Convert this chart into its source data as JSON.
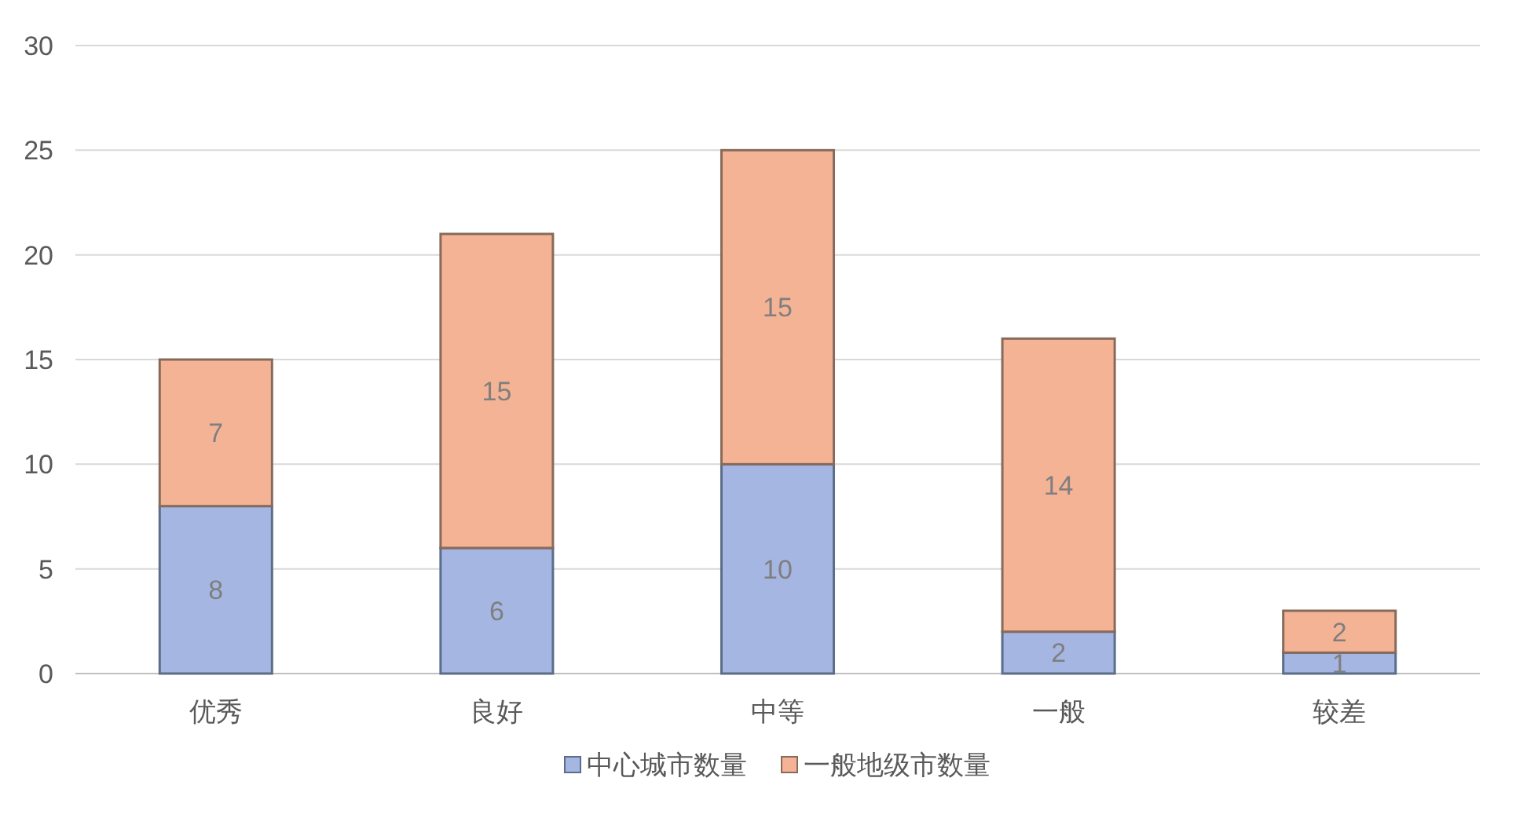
{
  "chart_data": {
    "type": "bar",
    "stacked": true,
    "categories": [
      "优秀",
      "良好",
      "中等",
      "一般",
      "较差"
    ],
    "series": [
      {
        "name": "中心城市数量",
        "color": "#a6b6e2",
        "values": [
          8,
          6,
          10,
          2,
          1
        ]
      },
      {
        "name": "一般地级市数量",
        "color": "#f5b396",
        "values": [
          7,
          15,
          15,
          14,
          2
        ]
      }
    ],
    "ylim": [
      0,
      30
    ],
    "yticks": [
      0,
      5,
      10,
      15,
      20,
      25,
      30
    ],
    "grid": "y",
    "legend": "bottom",
    "data_labels": true
  }
}
